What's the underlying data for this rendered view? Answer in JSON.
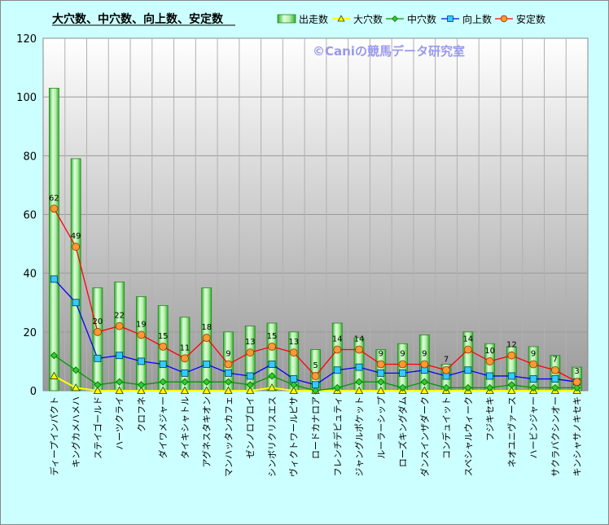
{
  "chart_data": {
    "type": "bar",
    "title": "大穴数、中穴数、向上数、安定数",
    "watermark": "©Caniの競馬データ研究室",
    "ylim": [
      0,
      120
    ],
    "yticks": [
      0,
      20,
      40,
      60,
      80,
      100,
      120
    ],
    "grid": true,
    "legend_position": "top-right",
    "categories": [
      "ディープインパクト",
      "キングカメハメハ",
      "ステイゴールド",
      "ハーツクライ",
      "クロフネ",
      "ダイワメジャー",
      "タイキシャトル",
      "アグネスタキオン",
      "マンハッタンカフェ",
      "ゼンノロブロイ",
      "シンボリクリスエス",
      "ヴィクトワールピサ",
      "ロードカナロア",
      "フレンチデピュティ",
      "ジャングルポケット",
      "ルーラーシップ",
      "ローズキングダム",
      "ダンスインザダーク",
      "コンデュイット",
      "スペシャルウィーク",
      "フジキセキ",
      "ネオユニヴァース",
      "ハービンジャー",
      "サクラバクシンオー",
      "キンシャサノキセキ"
    ],
    "series": [
      {
        "name": "出走数",
        "kind": "bar",
        "color": "#b8f0b0",
        "values": [
          103,
          79,
          35,
          37,
          32,
          29,
          25,
          35,
          20,
          22,
          23,
          20,
          14,
          23,
          18,
          14,
          16,
          19,
          9,
          20,
          16,
          15,
          15,
          12,
          8
        ]
      },
      {
        "name": "大穴数",
        "kind": "line",
        "color": "#ffff00",
        "values": [
          5,
          1,
          0,
          0,
          0,
          0,
          0,
          0,
          0,
          0,
          1,
          0,
          0,
          0,
          0,
          0,
          0,
          0,
          0,
          0,
          0,
          0,
          0,
          0,
          0
        ]
      },
      {
        "name": "中穴数",
        "kind": "line",
        "color": "#009900",
        "values": [
          12,
          7,
          2,
          3,
          2,
          3,
          3,
          3,
          3,
          2,
          5,
          2,
          0,
          1,
          3,
          3,
          1,
          3,
          1,
          1,
          1,
          2,
          1,
          1,
          1
        ]
      },
      {
        "name": "向上数",
        "kind": "line",
        "color": "#0000ff",
        "values": [
          38,
          30,
          11,
          12,
          10,
          9,
          6,
          9,
          6,
          5,
          9,
          4,
          2,
          7,
          8,
          6,
          6,
          7,
          5,
          7,
          5,
          5,
          4,
          4,
          3
        ]
      },
      {
        "name": "安定数",
        "kind": "line",
        "color": "#ff0000",
        "values": [
          62,
          49,
          20,
          22,
          19,
          15,
          11,
          18,
          9,
          13,
          15,
          13,
          5,
          14,
          14,
          9,
          9,
          9,
          7,
          14,
          10,
          12,
          9,
          7,
          3
        ]
      }
    ],
    "data_labels": [
      62,
      49,
      20,
      22,
      19,
      15,
      11,
      18,
      9,
      13,
      15,
      13,
      5,
      14,
      14,
      9,
      9,
      9,
      7,
      14,
      10,
      12,
      9,
      7,
      3
    ]
  },
  "colors": {
    "page_background": "#ccffff",
    "plot_gradient_top": "#ffffff",
    "plot_gradient_bottom": "#9a9a9a",
    "watermark": "#9999ee"
  }
}
